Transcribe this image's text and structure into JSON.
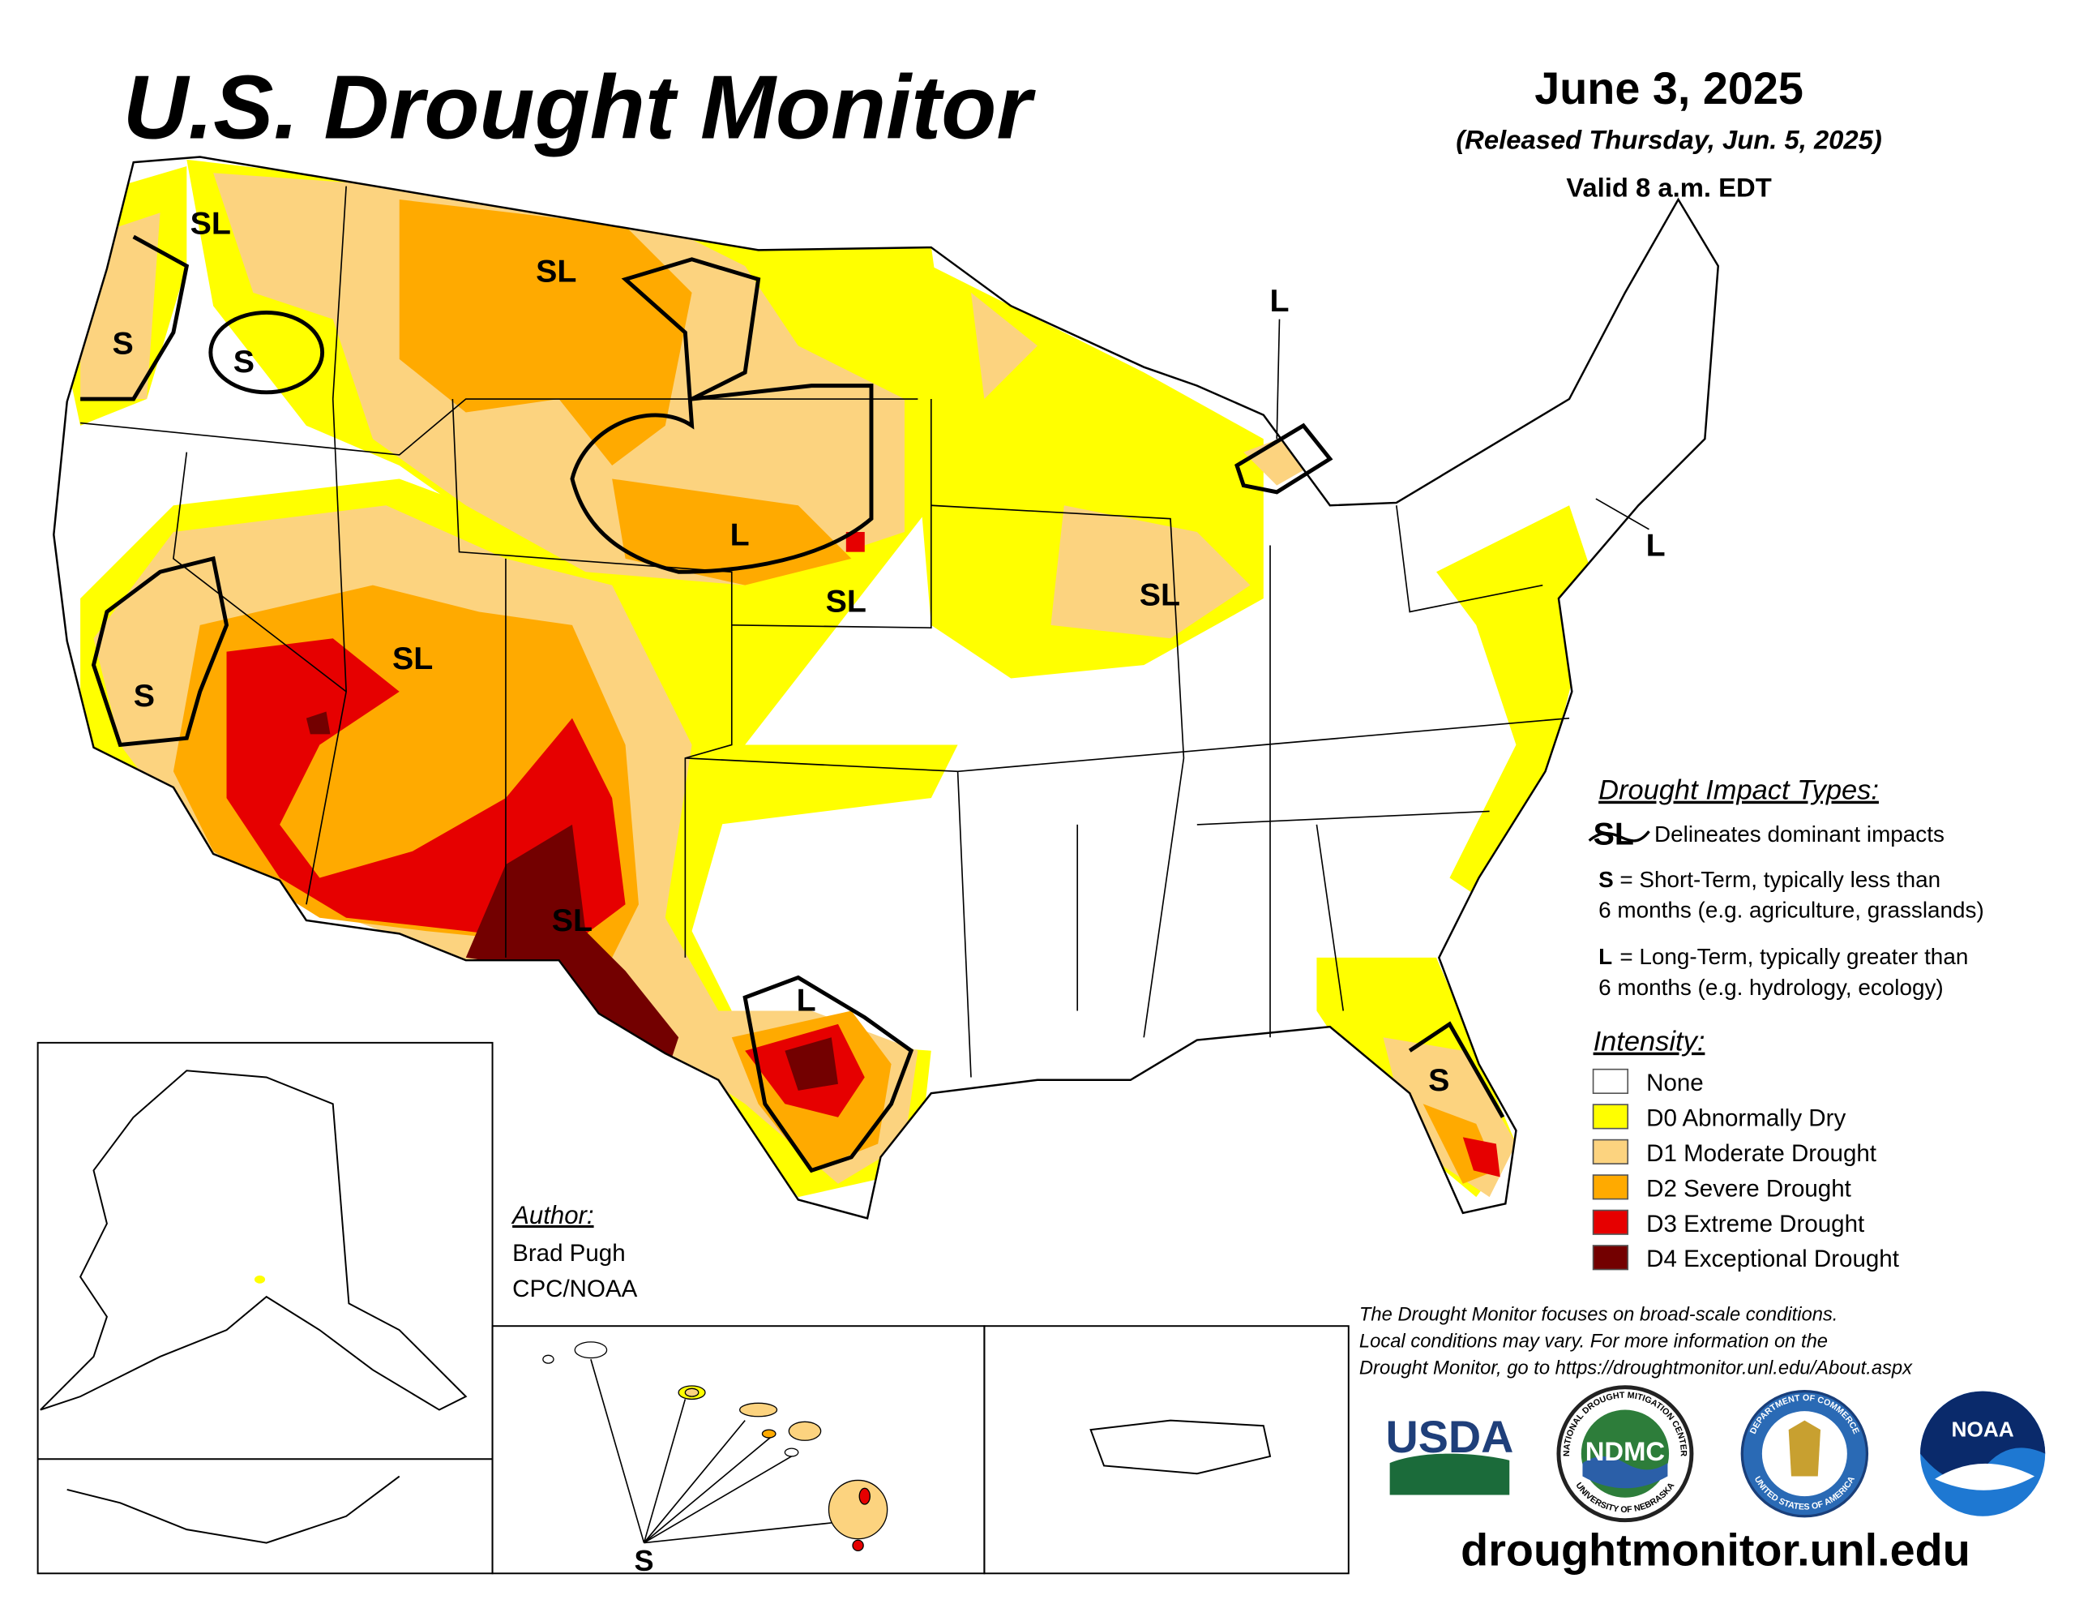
{
  "title": "U.S. Drought Monitor",
  "date": "June 3, 2025",
  "released": "(Released Thursday, Jun. 5, 2025)",
  "valid": "Valid 8 a.m. EDT",
  "map": {
    "labels": [
      "SL",
      "S",
      "S",
      "SL",
      "L",
      "L",
      "SL",
      "SL",
      "L",
      "SL",
      "S",
      "SL",
      "L",
      "S",
      "S"
    ]
  },
  "impact_legend": {
    "heading": "Drought Impact Types:",
    "symbol": "SL",
    "symbol_text": "Delineates dominant impacts",
    "short": {
      "key": "S",
      "lines": [
        "= Short-Term, typically less than",
        "6 months (e.g. agriculture, grasslands)"
      ]
    },
    "long": {
      "key": "L",
      "lines": [
        "= Long-Term, typically greater than",
        "6 months (e.g. hydrology, ecology)"
      ]
    }
  },
  "intensity": {
    "heading": "Intensity:",
    "items": [
      {
        "label": "None",
        "color": "#ffffff"
      },
      {
        "label": "D0 Abnormally Dry",
        "color": "#ffff00"
      },
      {
        "label": "D1 Moderate Drought",
        "color": "#fcd37f"
      },
      {
        "label": "D2 Severe Drought",
        "color": "#ffaa00"
      },
      {
        "label": "D3 Extreme Drought",
        "color": "#e60000"
      },
      {
        "label": "D4 Exceptional Drought",
        "color": "#730000"
      }
    ]
  },
  "author": {
    "heading": "Author:",
    "name": "Brad Pugh",
    "org": "CPC/NOAA"
  },
  "disclaimer": [
    "The Drought Monitor focuses on broad-scale conditions.",
    "Local conditions may vary. For more information on the",
    "Drought Monitor, go to https://droughtmonitor.unl.edu/About.aspx"
  ],
  "url": "droughtmonitor.unl.edu",
  "logos": {
    "usda": "USDA",
    "ndmc": "NDMC",
    "ndmc_ring_top": "NATIONAL DROUGHT MITIGATION CENTER",
    "ndmc_ring_bottom": "UNIVERSITY OF NEBRASKA",
    "doc_ring_top": "DEPARTMENT OF COMMERCE",
    "doc_ring_bottom": "UNITED STATES OF AMERICA",
    "noaa": "NOAA"
  }
}
